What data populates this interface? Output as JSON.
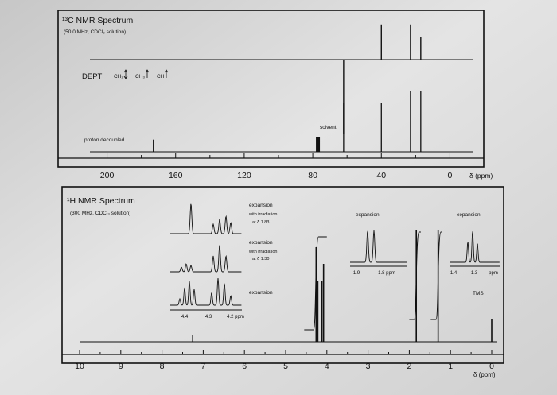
{
  "chart_data": [
    {
      "type": "line",
      "panel": "13C",
      "title": "¹³C NMR Spectrum",
      "subtitle": "(50.0 MHz, CDCl₃ solution)",
      "dept_label": "DEPT",
      "dept_legend": [
        "CH₂",
        "CH₃",
        "CH"
      ],
      "spectra": [
        {
          "name": "DEPT",
          "peaks": [
            {
              "ppm": 62,
              "height": 1.0,
              "dir": "down"
            },
            {
              "ppm": 40,
              "height": 0.85,
              "dir": "up"
            },
            {
              "ppm": 23,
              "height": 0.85,
              "dir": "up"
            },
            {
              "ppm": 17,
              "height": 0.55,
              "dir": "up"
            }
          ]
        },
        {
          "name": "proton decoupled",
          "peaks": [
            {
              "ppm": 173,
              "height": 0.18
            },
            {
              "ppm": 77,
              "height": 0.22,
              "block": true
            },
            {
              "ppm": 62,
              "height": 0.72
            },
            {
              "ppm": 40,
              "height": 0.72
            },
            {
              "ppm": 23,
              "height": 0.9
            },
            {
              "ppm": 17,
              "height": 0.9
            }
          ]
        }
      ],
      "spectrum_label": "proton decoupled",
      "solvent_label": "solvent",
      "xlim": [
        220,
        -8
      ],
      "xticks": [
        200,
        160,
        120,
        80,
        40,
        0
      ],
      "xlabel": "δ (ppm)"
    },
    {
      "type": "line",
      "panel": "1H",
      "title": "¹H NMR Spectrum",
      "subtitle": "(300 MHz, CDCl₃ solution)",
      "xlim": [
        10.3,
        -0.4
      ],
      "xticks": [
        10,
        9,
        8,
        7,
        6,
        5,
        4,
        3,
        2,
        1,
        0
      ],
      "xlabel": "δ (ppm)",
      "peaks": [
        {
          "ppm": 4.26,
          "height": 0.85
        },
        {
          "ppm": 4.22,
          "height": 0.55
        },
        {
          "ppm": 4.12,
          "height": 0.55
        },
        {
          "ppm": 4.08,
          "height": 0.7
        },
        {
          "ppm": 1.83,
          "height": 1.0
        },
        {
          "ppm": 1.3,
          "height": 1.0
        },
        {
          "ppm": 0.0,
          "height": 0.2
        }
      ],
      "tms_label": "TMS",
      "expansions": [
        {
          "label": "expansion",
          "note": [
            "with irradiation",
            "at δ 1.83"
          ]
        },
        {
          "label": "expansion",
          "note": [
            "with irradiation",
            "at δ 1.30"
          ]
        },
        {
          "label": "expansion",
          "note": [],
          "ticks": [
            "4.4",
            "4.3",
            "4.2 ppm"
          ]
        },
        {
          "label": "expansion",
          "ticks": [
            "1.9",
            "1.8 ppm"
          ]
        },
        {
          "label": "expansion",
          "ticks": [
            "1.4",
            "1.3",
            "ppm"
          ]
        }
      ]
    }
  ]
}
